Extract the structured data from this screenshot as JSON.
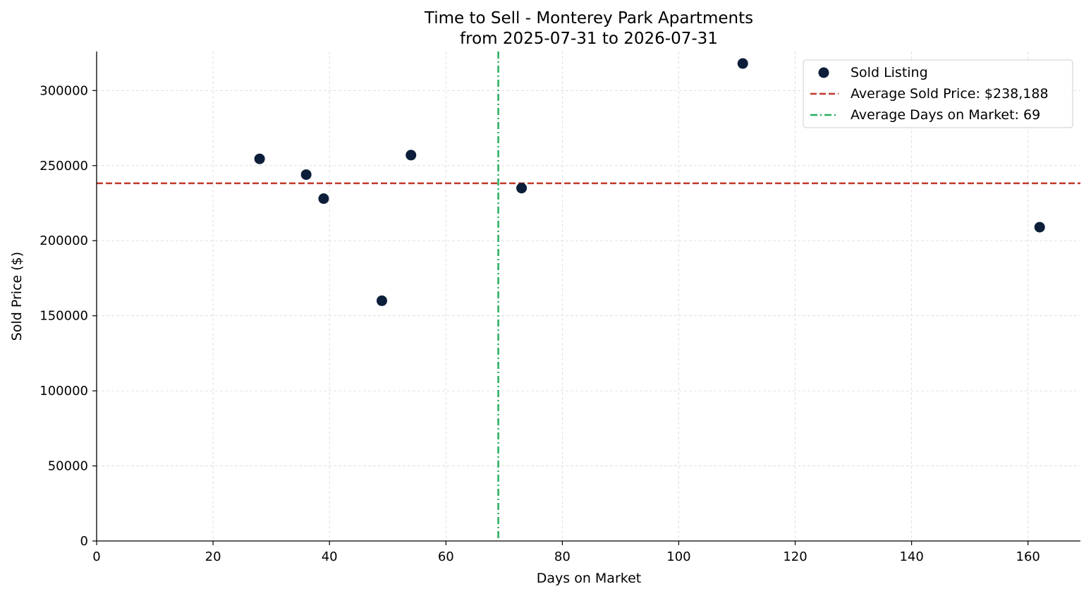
{
  "chart_data": {
    "type": "scatter",
    "title": "Time to Sell - Monterey Park Apartments",
    "subtitle": "from 2025-07-31 to 2026-07-31",
    "xlabel": "Days on Market",
    "ylabel": "Sold Price ($)",
    "xlim": [
      0,
      169
    ],
    "ylim": [
      0,
      326000
    ],
    "xticks": [
      0,
      20,
      40,
      60,
      80,
      100,
      120,
      140,
      160
    ],
    "yticks": [
      0,
      50000,
      100000,
      150000,
      200000,
      250000,
      300000
    ],
    "grid": true,
    "legend_position": "top-right",
    "series": [
      {
        "name": "Sold Listing",
        "color": "#0c1e3a",
        "points": [
          {
            "x": 28,
            "y": 254500
          },
          {
            "x": 36,
            "y": 244000
          },
          {
            "x": 39,
            "y": 228000
          },
          {
            "x": 49,
            "y": 160000
          },
          {
            "x": 54,
            "y": 257000
          },
          {
            "x": 73,
            "y": 235000
          },
          {
            "x": 111,
            "y": 318000
          },
          {
            "x": 162,
            "y": 209000
          }
        ]
      }
    ],
    "reference_lines": [
      {
        "name": "Average Sold Price: $238,188",
        "orientation": "horizontal",
        "value": 238188,
        "color": "#c0392b",
        "style": "dashed"
      },
      {
        "name": "Average Days on Market: 69",
        "orientation": "vertical",
        "value": 69,
        "color": "#27ae60",
        "style": "dashdot"
      }
    ]
  }
}
